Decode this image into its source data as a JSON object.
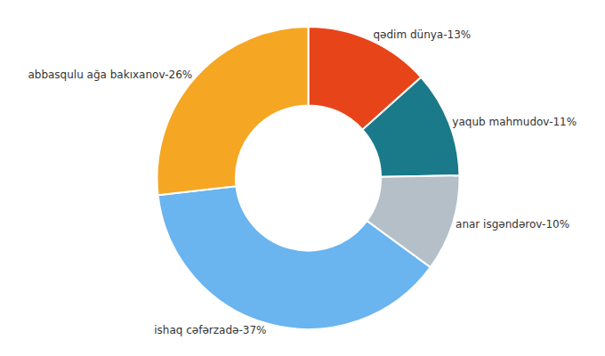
{
  "chart_data": {
    "type": "pie",
    "categories": [
      "qədim dünya-13%",
      "yaqub mahmudov-11%",
      "anar isgəndərov-10%",
      "ishaq cəfərzadə-37%",
      "abbasqulu ağa bakıxanov-26%"
    ],
    "values": [
      13,
      11,
      10,
      37,
      26
    ],
    "colors": [
      "#e8441a",
      "#1a7a8a",
      "#b5bfc8",
      "#6ab4ef",
      "#f5a623"
    ]
  }
}
